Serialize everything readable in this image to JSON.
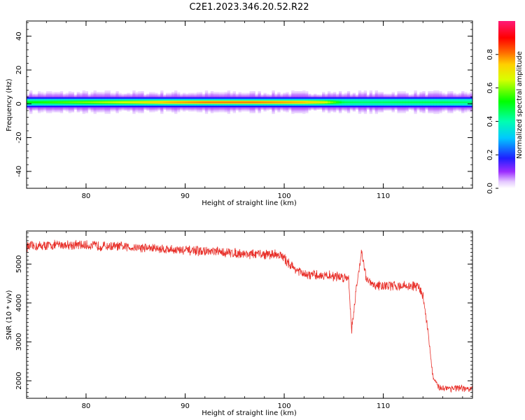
{
  "title": "C2E1.2023.346.20.52.R22",
  "chart_data": [
    {
      "type": "heatmap",
      "xlabel": "Height of straight line (km)",
      "ylabel": "Frequency (Hz)",
      "xlim": [
        74,
        119
      ],
      "ylim": [
        -50,
        49
      ],
      "x_ticks": [
        80,
        90,
        100,
        110
      ],
      "y_ticks": [
        -40,
        -20,
        0,
        20,
        40
      ],
      "colorbar": {
        "label": "Normalized spectral amplitude",
        "range": [
          0,
          1
        ],
        "ticks": [
          "0.0",
          "0.2",
          "0.4",
          "0.6",
          "0.8"
        ],
        "colormap": "rainbow (violet→blue→cyan→green→yellow→red→pink)"
      },
      "band_center_hz": 1,
      "profile_peak_amplitude": [
        {
          "x": 74.5,
          "amp": 0.55
        },
        {
          "x": 78,
          "amp": 0.6
        },
        {
          "x": 84,
          "amp": 0.7
        },
        {
          "x": 88,
          "amp": 0.8
        },
        {
          "x": 92,
          "amp": 0.85
        },
        {
          "x": 97,
          "amp": 0.85
        },
        {
          "x": 102,
          "amp": 0.8
        },
        {
          "x": 104,
          "amp": 0.72
        },
        {
          "x": 106,
          "amp": 0.5
        },
        {
          "x": 108,
          "amp": 0.48
        },
        {
          "x": 112,
          "amp": 0.5
        },
        {
          "x": 116,
          "amp": 0.5
        },
        {
          "x": 119,
          "amp": 0.48
        }
      ]
    },
    {
      "type": "line",
      "xlabel": "Height of straight line (km)",
      "ylabel": "SNR (10 * v/v)",
      "xlim": [
        74,
        119
      ],
      "ylim": [
        1550,
        5850
      ],
      "x_ticks": [
        80,
        90,
        100,
        110
      ],
      "y_ticks": [
        2000,
        3000,
        4000,
        5000
      ],
      "color": "#e8302a",
      "series": [
        {
          "values_trend": [
            {
              "x": 74.0,
              "y": 5450
            },
            {
              "x": 78.0,
              "y": 5500
            },
            {
              "x": 82.0,
              "y": 5460
            },
            {
              "x": 86.0,
              "y": 5420
            },
            {
              "x": 90.0,
              "y": 5350
            },
            {
              "x": 94.0,
              "y": 5300
            },
            {
              "x": 97.0,
              "y": 5250
            },
            {
              "x": 99.5,
              "y": 5250
            },
            {
              "x": 101.0,
              "y": 4900
            },
            {
              "x": 102.0,
              "y": 4720
            },
            {
              "x": 104.5,
              "y": 4700
            },
            {
              "x": 106.5,
              "y": 4650
            },
            {
              "x": 106.8,
              "y": 3300
            },
            {
              "x": 107.2,
              "y": 4200
            },
            {
              "x": 107.8,
              "y": 5350
            },
            {
              "x": 108.3,
              "y": 4600
            },
            {
              "x": 109.0,
              "y": 4450
            },
            {
              "x": 113.5,
              "y": 4430
            },
            {
              "x": 114.0,
              "y": 4200
            },
            {
              "x": 114.5,
              "y": 3300
            },
            {
              "x": 115.0,
              "y": 2100
            },
            {
              "x": 115.5,
              "y": 1830
            },
            {
              "x": 119.0,
              "y": 1780
            }
          ]
        }
      ]
    }
  ]
}
